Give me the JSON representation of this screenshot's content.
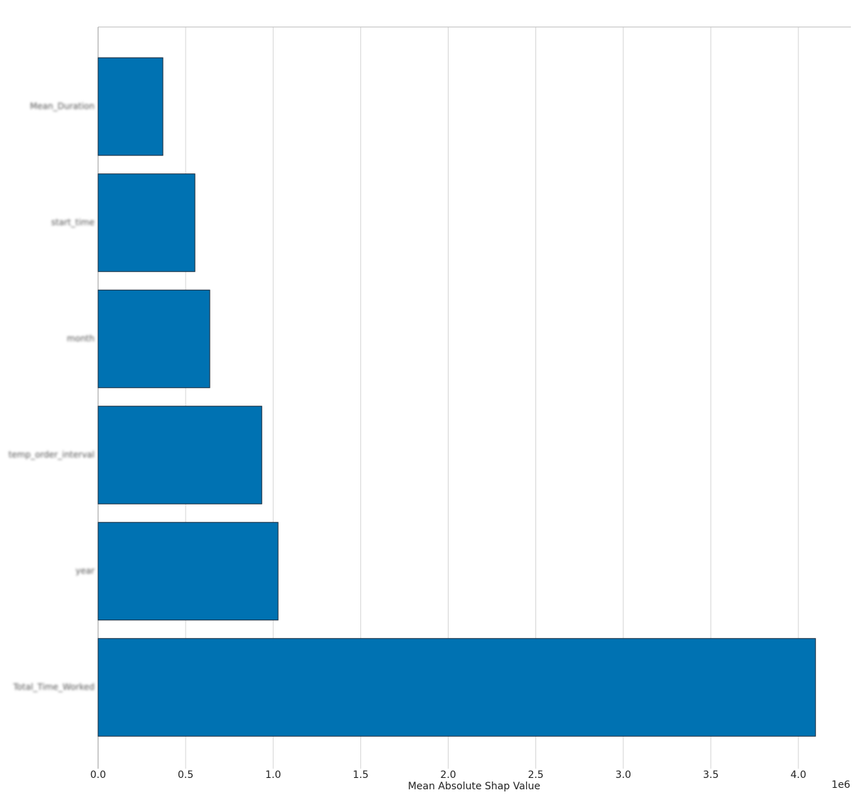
{
  "chart_data": {
    "type": "barh",
    "xlabel": "Mean Absolute Shap Value",
    "offset_label": "1e6",
    "categories": [
      "Mean_Duration",
      "start_time",
      "month",
      "temp_order_interval",
      "year",
      "Total_Time_Worked"
    ],
    "values": [
      0.37,
      0.553,
      0.638,
      0.935,
      1.028,
      4.098
    ],
    "color": "#0072b2",
    "edgecolor": "#1a2a3a",
    "xlim": [
      0,
      4.3
    ],
    "xticks": [
      {
        "value": 0,
        "label": "0.0"
      },
      0.5,
      {
        "value": 1,
        "label": "1.0"
      },
      1.5,
      {
        "value": 2,
        "label": "2.0"
      },
      2.5,
      {
        "value": 3,
        "label": "3.0"
      },
      3.5,
      {
        "value": 4,
        "label": "4.0"
      }
    ],
    "grid": true
  }
}
